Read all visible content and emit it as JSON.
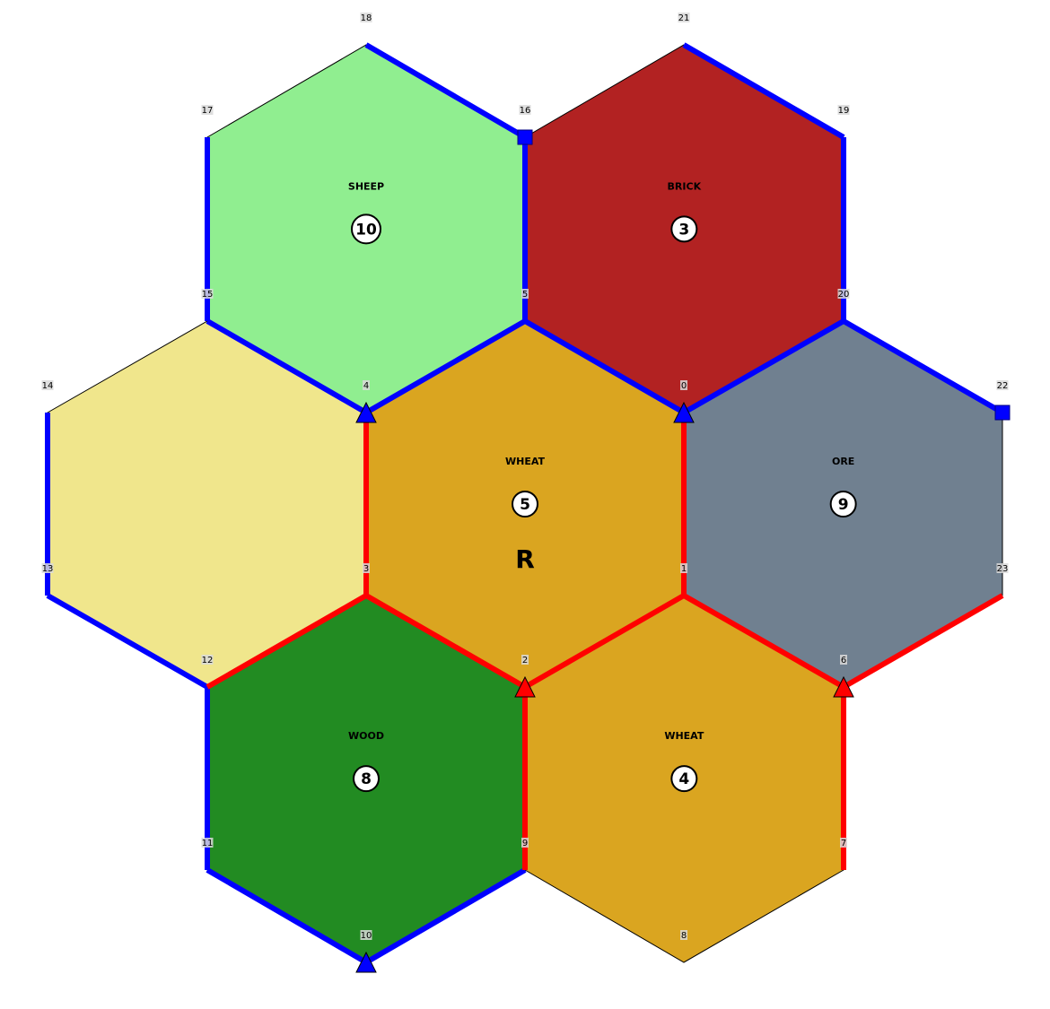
{
  "colors": {
    "SHEEP": "#90ee90",
    "BRICK": "#b22222",
    "WHEAT": "#daa520",
    "ORE": "#708090",
    "WOOD": "#228b22",
    "DESERT": "#f0e68c",
    "blue_player": "#0000ff",
    "red_player": "#ff0000"
  },
  "tiles": [
    {
      "resource": "SHEEP",
      "number": "10",
      "nodes": [
        18,
        16,
        5,
        4,
        15,
        17
      ]
    },
    {
      "resource": "BRICK",
      "number": "3",
      "nodes": [
        21,
        19,
        20,
        0,
        5,
        16
      ]
    },
    {
      "resource": "",
      "number": "",
      "nodes": [
        15,
        4,
        3,
        12,
        13,
        14
      ]
    },
    {
      "resource": "WHEAT",
      "number": "5",
      "nodes": [
        5,
        0,
        1,
        2,
        3,
        4
      ],
      "robber": "R"
    },
    {
      "resource": "ORE",
      "number": "9",
      "nodes": [
        20,
        22,
        23,
        6,
        1,
        0
      ]
    },
    {
      "resource": "WOOD",
      "number": "8",
      "nodes": [
        3,
        2,
        9,
        10,
        11,
        12
      ]
    },
    {
      "resource": "WHEAT",
      "number": "4",
      "nodes": [
        1,
        6,
        7,
        8,
        9,
        2
      ]
    }
  ],
  "roads": [
    {
      "color": "blue",
      "from": 18,
      "to": 16
    },
    {
      "color": "blue",
      "from": 16,
      "to": 5
    },
    {
      "color": "blue",
      "from": 5,
      "to": 4
    },
    {
      "color": "blue",
      "from": 4,
      "to": 15
    },
    {
      "color": "blue",
      "from": 15,
      "to": 17
    },
    {
      "color": "blue",
      "from": 5,
      "to": 0
    },
    {
      "color": "blue",
      "from": 0,
      "to": 20
    },
    {
      "color": "blue",
      "from": 20,
      "to": 19
    },
    {
      "color": "blue",
      "from": 19,
      "to": 21
    },
    {
      "color": "blue",
      "from": 20,
      "to": 22
    },
    {
      "color": "blue",
      "from": 14,
      "to": 13
    },
    {
      "color": "blue",
      "from": 13,
      "to": 12
    },
    {
      "color": "blue",
      "from": 12,
      "to": 11
    },
    {
      "color": "blue",
      "from": 11,
      "to": 10
    },
    {
      "color": "blue",
      "from": 10,
      "to": 9
    },
    {
      "color": "red",
      "from": 4,
      "to": 3
    },
    {
      "color": "red",
      "from": 3,
      "to": 12
    },
    {
      "color": "red",
      "from": 3,
      "to": 2
    },
    {
      "color": "red",
      "from": 2,
      "to": 1
    },
    {
      "color": "red",
      "from": 0,
      "to": 1
    },
    {
      "color": "red",
      "from": 1,
      "to": 6
    },
    {
      "color": "red",
      "from": 6,
      "to": 23
    },
    {
      "color": "red",
      "from": 6,
      "to": 7
    },
    {
      "color": "red",
      "from": 2,
      "to": 9
    }
  ],
  "buildings": [
    {
      "type": "settlement",
      "color": "blue",
      "node": 4
    },
    {
      "type": "settlement",
      "color": "blue",
      "node": 0
    },
    {
      "type": "settlement",
      "color": "blue",
      "node": 10
    },
    {
      "type": "settlement",
      "color": "red",
      "node": 2
    },
    {
      "type": "settlement",
      "color": "red",
      "node": 6
    },
    {
      "type": "port",
      "color": "blue",
      "node": 16
    },
    {
      "type": "port",
      "color": "blue",
      "node": 22
    }
  ],
  "node_labels": [
    "0",
    "1",
    "2",
    "3",
    "4",
    "5",
    "6",
    "7",
    "8",
    "9",
    "10",
    "11",
    "12",
    "13",
    "14",
    "15",
    "16",
    "17",
    "18",
    "19",
    "20",
    "21",
    "22",
    "23"
  ]
}
